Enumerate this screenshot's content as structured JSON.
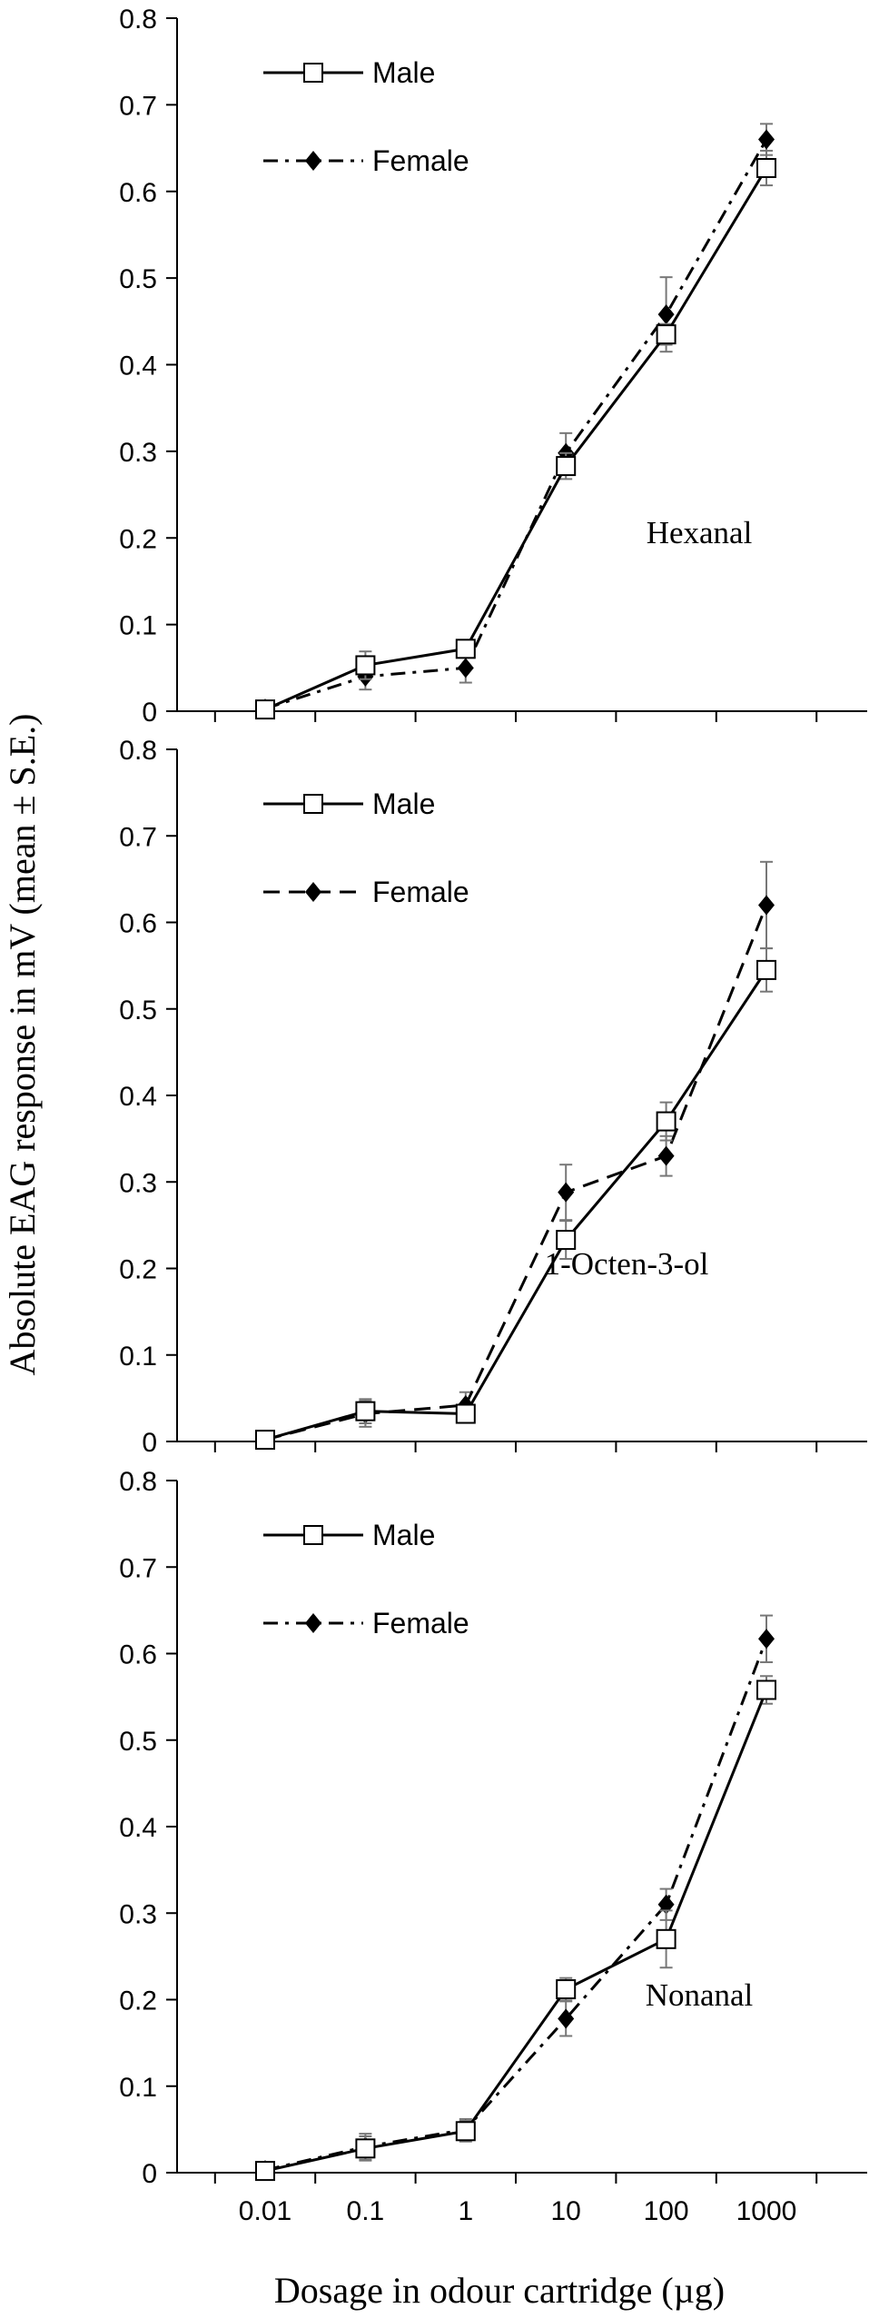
{
  "figure": {
    "ylabel": "Absolute EAG response in mV (mean ± S.E.)",
    "xlabel": "Dosage in odour cartridge (µg)"
  },
  "chart_data": [
    {
      "type": "line",
      "label": "Hexanal",
      "categories": [
        "0.01",
        "0.1",
        "1",
        "10",
        "100",
        "1000"
      ],
      "ylim": [
        0,
        0.8
      ],
      "yticks": [
        "0",
        "0.1",
        "0.2",
        "0.3",
        "0.4",
        "0.5",
        "0.6",
        "0.7",
        "0.8"
      ],
      "legend": {
        "position": "top-left"
      },
      "series": [
        {
          "name": "Male",
          "style": "solid",
          "marker": "open-square",
          "values": [
            0.002,
            0.053,
            0.072,
            0.283,
            0.435,
            0.627
          ],
          "errors": [
            0.004,
            0.016,
            0.006,
            0.015,
            0.012,
            0.02
          ]
        },
        {
          "name": "Female",
          "style": "dash-dot",
          "marker": "filled-diamond",
          "values": [
            0.003,
            0.04,
            0.05,
            0.298,
            0.458,
            0.66
          ],
          "errors": [
            0.004,
            0.015,
            0.017,
            0.023,
            0.043,
            0.018
          ]
        }
      ]
    },
    {
      "type": "line",
      "label": "1-Octen-3-ol",
      "categories": [
        "0.01",
        "0.1",
        "1",
        "10",
        "100",
        "1000"
      ],
      "ylim": [
        0,
        0.8
      ],
      "yticks": [
        "0",
        "0.1",
        "0.2",
        "0.3",
        "0.4",
        "0.5",
        "0.6",
        "0.7",
        "0.8"
      ],
      "legend": {
        "position": "top-left"
      },
      "series": [
        {
          "name": "Male",
          "style": "solid",
          "marker": "open-square",
          "values": [
            0.002,
            0.035,
            0.032,
            0.233,
            0.37,
            0.545
          ],
          "errors": [
            0.004,
            0.014,
            0.007,
            0.022,
            0.022,
            0.025
          ]
        },
        {
          "name": "Female",
          "style": "dashed",
          "marker": "filled-diamond",
          "values": [
            0.002,
            0.032,
            0.042,
            0.288,
            0.33,
            0.62
          ],
          "errors": [
            0.004,
            0.015,
            0.015,
            0.032,
            0.023,
            0.05
          ]
        }
      ]
    },
    {
      "type": "line",
      "label": "Nonanal",
      "categories": [
        "0.01",
        "0.1",
        "1",
        "10",
        "100",
        "1000"
      ],
      "ylim": [
        0,
        0.8
      ],
      "yticks": [
        "0",
        "0.1",
        "0.2",
        "0.3",
        "0.4",
        "0.5",
        "0.6",
        "0.7",
        "0.8"
      ],
      "legend": {
        "position": "top-left"
      },
      "series": [
        {
          "name": "Male",
          "style": "solid",
          "marker": "open-square",
          "values": [
            0.002,
            0.028,
            0.048,
            0.212,
            0.27,
            0.558
          ],
          "errors": [
            0.004,
            0.014,
            0.012,
            0.013,
            0.033,
            0.016
          ]
        },
        {
          "name": "Female",
          "style": "dash-dot",
          "marker": "filled-diamond",
          "values": [
            0.003,
            0.03,
            0.05,
            0.178,
            0.31,
            0.617
          ],
          "errors": [
            0.004,
            0.015,
            0.012,
            0.02,
            0.018,
            0.027
          ]
        }
      ]
    }
  ]
}
